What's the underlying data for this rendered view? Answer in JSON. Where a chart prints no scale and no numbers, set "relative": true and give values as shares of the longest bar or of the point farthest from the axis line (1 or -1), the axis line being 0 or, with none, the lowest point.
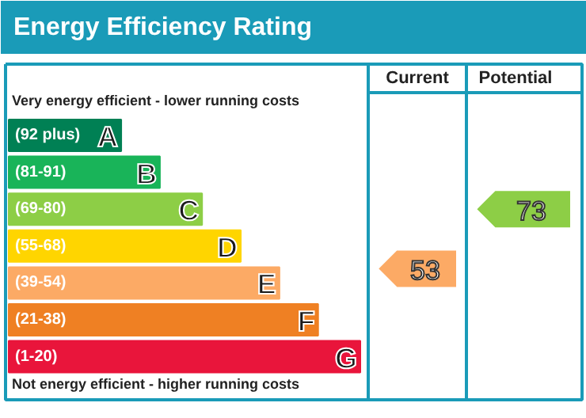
{
  "chart_data": {
    "type": "bar",
    "orientation": "horizontal",
    "relative": true,
    "title": "Energy Efficiency Rating",
    "categories": [
      "(92 plus)",
      "(81-91)",
      "(69-80)",
      "(55-68)",
      "(39-54)",
      "(21-38)",
      "(1-20)"
    ],
    "values": [
      0.32,
      0.43,
      0.55,
      0.66,
      0.77,
      0.88,
      1
    ],
    "colors": [
      "#008054",
      "#19b459",
      "#8dce46",
      "#ffd500",
      "#fcaa65",
      "#ef8023",
      "#e9153b"
    ],
    "annotations": [
      "Very energy efficient - lower running costs",
      "Not energy efficient - higher running costs",
      "Current",
      "Potential",
      "53",
      "73",
      "A",
      "B",
      "C",
      "D",
      "E",
      "F",
      "G"
    ]
  }
}
